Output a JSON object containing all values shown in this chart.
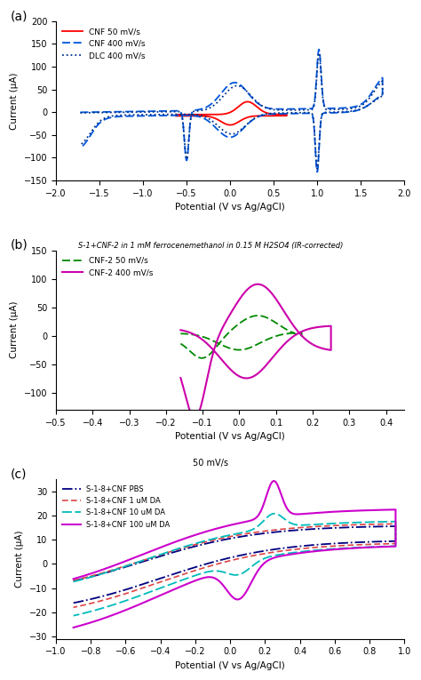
{
  "panel_a": {
    "title": "S-1+CNF-2 in 1 mM ferrocenemethanol in 0.15 M H2SO4 (IR-corrected)",
    "xlabel": "Potential (V vs Ag/AgCl)",
    "ylabel": "Current (μA)",
    "xlim": [
      -2,
      2
    ],
    "ylim": [
      -150,
      200
    ],
    "yticks": [
      -150,
      -100,
      -50,
      0,
      50,
      100,
      150,
      200
    ],
    "xticks": [
      -2,
      -1.5,
      -1,
      -0.5,
      0,
      0.5,
      1,
      1.5,
      2
    ]
  },
  "panel_b": {
    "subtitle": "50 mV/s",
    "xlabel": "Potential (V vs Ag/AgCl)",
    "ylabel": "Current (μA)",
    "xlim": [
      -0.5,
      0.45
    ],
    "ylim": [
      -130,
      150
    ],
    "yticks": [
      -100,
      -50,
      0,
      50,
      100,
      150
    ],
    "xticks": [
      -0.5,
      -0.4,
      -0.3,
      -0.2,
      -0.1,
      0.0,
      0.1,
      0.2,
      0.3,
      0.4
    ]
  },
  "panel_c": {
    "subtitle": "50 mV/s",
    "xlabel": "Potential (V vs Ag/AgCl)",
    "ylabel": "Current (μA)",
    "xlim": [
      -1,
      1
    ],
    "ylim": [
      -31,
      35
    ],
    "yticks": [
      -30,
      -20,
      -10,
      0,
      10,
      20,
      30
    ],
    "xticks": [
      -1.0,
      -0.8,
      -0.6,
      -0.4,
      -0.2,
      0.0,
      0.2,
      0.4,
      0.6,
      0.8,
      1.0
    ]
  }
}
